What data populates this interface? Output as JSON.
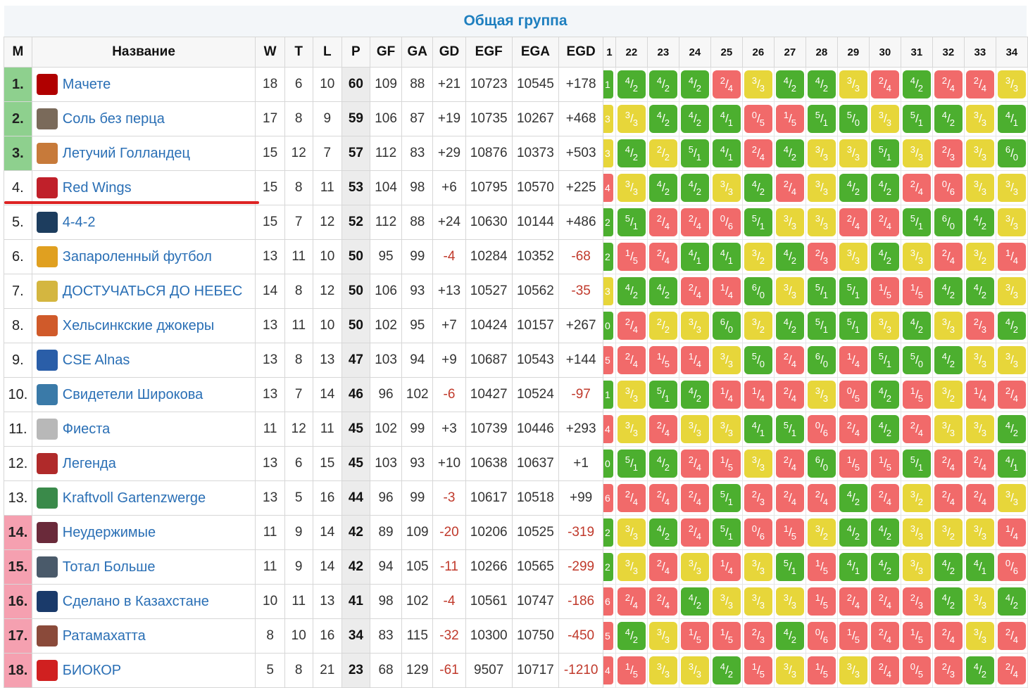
{
  "header": {
    "title": "Общая группа"
  },
  "columns": [
    "М",
    "Название",
    "W",
    "T",
    "L",
    "P",
    "GF",
    "GA",
    "GD",
    "EGF",
    "EGA",
    "EGD"
  ],
  "round_columns": [
    "1",
    "22",
    "23",
    "24",
    "25",
    "26",
    "27",
    "28",
    "29",
    "30",
    "31",
    "32",
    "33",
    "34"
  ],
  "rows": [
    {
      "pos": "1.",
      "zone": "top",
      "name": "Мачете",
      "logo_color": "#b00000",
      "w": "18",
      "t": "6",
      "l": "10",
      "p": "60",
      "gf": "109",
      "ga": "88",
      "gd": "+21",
      "egf": "10723",
      "ega": "10545",
      "egd": "+178",
      "first": "1",
      "res": [
        "w4/2",
        "w4/2",
        "w4/2",
        "l2/4",
        "d3/3",
        "w4/2",
        "w4/2",
        "d3/3",
        "l2/4",
        "w4/2",
        "l2/4",
        "l2/4",
        "d3/3"
      ]
    },
    {
      "pos": "2.",
      "zone": "top",
      "name": "Соль без перца",
      "logo_color": "#7a6a5a",
      "w": "17",
      "t": "8",
      "l": "9",
      "p": "59",
      "gf": "106",
      "ga": "87",
      "gd": "+19",
      "egf": "10735",
      "ega": "10267",
      "egd": "+468",
      "first": "3",
      "res": [
        "d3/3",
        "w4/2",
        "w4/2",
        "w4/1",
        "l0/5",
        "l1/5",
        "w5/1",
        "w5/0",
        "d3/3",
        "w5/1",
        "w4/2",
        "d3/3",
        "w4/1"
      ]
    },
    {
      "pos": "3.",
      "zone": "top",
      "name": "Летучий Голландец",
      "logo_color": "#c77a3a",
      "w": "15",
      "t": "12",
      "l": "7",
      "p": "57",
      "gf": "112",
      "ga": "83",
      "gd": "+29",
      "egf": "10876",
      "ega": "10373",
      "egd": "+503",
      "first": "3",
      "res": [
        "w4/2",
        "d2/2",
        "w5/1",
        "w4/1",
        "l2/4",
        "w4/2",
        "d3/3",
        "d3/3",
        "w5/1",
        "d3/3",
        "l2/3",
        "d3/3",
        "w6/0"
      ]
    },
    {
      "pos": "4.",
      "zone": "",
      "name": "Red Wings",
      "logo_color": "#c0202a",
      "w": "15",
      "t": "8",
      "l": "11",
      "p": "53",
      "gf": "104",
      "ga": "98",
      "gd": "+6",
      "egf": "10795",
      "ega": "10570",
      "egd": "+225",
      "first": "4",
      "res": [
        "d3/3",
        "w4/2",
        "w4/2",
        "d3/3",
        "w4/2",
        "l2/4",
        "d3/3",
        "w4/2",
        "w4/2",
        "l2/4",
        "l0/6",
        "d3/3",
        "d3/3"
      ]
    },
    {
      "pos": "5.",
      "zone": "",
      "name": "4-4-2",
      "logo_color": "#1d3d5e",
      "w": "15",
      "t": "7",
      "l": "12",
      "p": "52",
      "gf": "112",
      "ga": "88",
      "gd": "+24",
      "egf": "10630",
      "ega": "10144",
      "egd": "+486",
      "first": "2",
      "res": [
        "w5/1",
        "l2/4",
        "l2/4",
        "l0/6",
        "w5/1",
        "d3/3",
        "d3/3",
        "l2/4",
        "l2/4",
        "w5/1",
        "w6/0",
        "w4/2",
        "d3/3"
      ]
    },
    {
      "pos": "6.",
      "zone": "",
      "name": "Запароленный футбол",
      "logo_color": "#e0a020",
      "w": "13",
      "t": "11",
      "l": "10",
      "p": "50",
      "gf": "95",
      "ga": "99",
      "gd": "-4",
      "egf": "10284",
      "ega": "10352",
      "egd": "-68",
      "first": "2",
      "res": [
        "l1/5",
        "l2/4",
        "w4/1",
        "w4/1",
        "d3/2",
        "w4/2",
        "l2/3",
        "d3/3",
        "w4/2",
        "d3/3",
        "l2/4",
        "d3/2",
        "l1/4"
      ]
    },
    {
      "pos": "7.",
      "zone": "",
      "name": "ДОСТУЧАТЬСЯ ДО НЕБЕС",
      "logo_color": "#d4b640",
      "w": "14",
      "t": "8",
      "l": "12",
      "p": "50",
      "gf": "106",
      "ga": "93",
      "gd": "+13",
      "egf": "10527",
      "ega": "10562",
      "egd": "-35",
      "first": "3",
      "res": [
        "w4/2",
        "w4/2",
        "l2/4",
        "l1/4",
        "w6/0",
        "d3/3",
        "w5/1",
        "w5/1",
        "l1/5",
        "l1/5",
        "w4/2",
        "w4/2",
        "d3/3"
      ]
    },
    {
      "pos": "8.",
      "zone": "",
      "name": "Хельсинкские джокеры",
      "logo_color": "#d05a2a",
      "w": "13",
      "t": "11",
      "l": "10",
      "p": "50",
      "gf": "102",
      "ga": "95",
      "gd": "+7",
      "egf": "10424",
      "ega": "10157",
      "egd": "+267",
      "first": "0",
      "res": [
        "l2/4",
        "d2/2",
        "d3/3",
        "w6/0",
        "d3/2",
        "w4/2",
        "w5/1",
        "w5/1",
        "d3/3",
        "w4/2",
        "d3/3",
        "l2/3",
        "w4/2"
      ]
    },
    {
      "pos": "9.",
      "zone": "",
      "name": "CSE Alnas",
      "logo_color": "#2a5ea8",
      "w": "13",
      "t": "8",
      "l": "13",
      "p": "47",
      "gf": "103",
      "ga": "94",
      "gd": "+9",
      "egf": "10687",
      "ega": "10543",
      "egd": "+144",
      "first": "5",
      "res": [
        "l2/4",
        "l1/5",
        "l1/4",
        "d3/3",
        "w5/0",
        "l2/4",
        "w6/0",
        "l1/4",
        "w5/1",
        "w5/0",
        "w4/2",
        "d3/3",
        "d3/3"
      ]
    },
    {
      "pos": "10.",
      "zone": "",
      "name": "Свидетели Широкова",
      "logo_color": "#3a7aa8",
      "w": "13",
      "t": "7",
      "l": "14",
      "p": "46",
      "gf": "96",
      "ga": "102",
      "gd": "-6",
      "egf": "10427",
      "ega": "10524",
      "egd": "-97",
      "first": "1",
      "res": [
        "d3/3",
        "w5/1",
        "w4/2",
        "l1/4",
        "l1/4",
        "l2/4",
        "d3/3",
        "l0/5",
        "w4/2",
        "l1/5",
        "d3/2",
        "l1/4",
        "l2/4"
      ]
    },
    {
      "pos": "11.",
      "zone": "",
      "name": "Фиеста",
      "logo_color": "#b8b8b8",
      "w": "11",
      "t": "12",
      "l": "11",
      "p": "45",
      "gf": "102",
      "ga": "99",
      "gd": "+3",
      "egf": "10739",
      "ega": "10446",
      "egd": "+293",
      "first": "4",
      "res": [
        "d3/3",
        "l2/4",
        "d3/3",
        "d3/3",
        "w4/1",
        "w5/1",
        "l0/6",
        "l2/4",
        "w4/2",
        "l2/4",
        "d3/3",
        "d3/3",
        "w4/2"
      ]
    },
    {
      "pos": "12.",
      "zone": "",
      "name": "Легенда",
      "logo_color": "#b02a2a",
      "w": "13",
      "t": "6",
      "l": "15",
      "p": "45",
      "gf": "103",
      "ga": "93",
      "gd": "+10",
      "egf": "10638",
      "ega": "10637",
      "egd": "+1",
      "first": "0",
      "res": [
        "w5/1",
        "w4/2",
        "l2/4",
        "l1/5",
        "d3/3",
        "l2/4",
        "w6/0",
        "l1/5",
        "l1/5",
        "w5/1",
        "l2/4",
        "l2/4",
        "w4/1"
      ]
    },
    {
      "pos": "13.",
      "zone": "",
      "name": "Kraftvoll Gartenzwerge",
      "logo_color": "#3a8a4a",
      "w": "13",
      "t": "5",
      "l": "16",
      "p": "44",
      "gf": "96",
      "ga": "99",
      "gd": "-3",
      "egf": "10617",
      "ega": "10518",
      "egd": "+99",
      "first": "6",
      "res": [
        "l2/4",
        "l2/4",
        "l2/4",
        "w5/1",
        "l2/3",
        "l2/4",
        "l2/4",
        "w4/2",
        "l2/4",
        "d3/2",
        "l2/4",
        "l2/4",
        "d3/3"
      ]
    },
    {
      "pos": "14.",
      "zone": "bottom",
      "name": "Неудержимые",
      "logo_color": "#6a2a3a",
      "w": "11",
      "t": "9",
      "l": "14",
      "p": "42",
      "gf": "89",
      "ga": "109",
      "gd": "-20",
      "egf": "10206",
      "ega": "10525",
      "egd": "-319",
      "first": "2",
      "res": [
        "d3/3",
        "w4/2",
        "l2/4",
        "w5/1",
        "l0/6",
        "l1/5",
        "d3/2",
        "w4/2",
        "w4/2",
        "d3/3",
        "d3/2",
        "d3/3",
        "l1/4"
      ]
    },
    {
      "pos": "15.",
      "zone": "bottom",
      "name": "Тотал Больше",
      "logo_color": "#4a5a6a",
      "w": "11",
      "t": "9",
      "l": "14",
      "p": "42",
      "gf": "94",
      "ga": "105",
      "gd": "-11",
      "egf": "10266",
      "ega": "10565",
      "egd": "-299",
      "first": "2",
      "res": [
        "d3/3",
        "l2/4",
        "d3/3",
        "l1/4",
        "d3/3",
        "w5/1",
        "l1/5",
        "w4/1",
        "w4/2",
        "d3/3",
        "w4/2",
        "w4/1",
        "l0/6"
      ]
    },
    {
      "pos": "16.",
      "zone": "bottom",
      "name": "Сделано в Казахстане",
      "logo_color": "#1a3a6a",
      "w": "10",
      "t": "11",
      "l": "13",
      "p": "41",
      "gf": "98",
      "ga": "102",
      "gd": "-4",
      "egf": "10561",
      "ega": "10747",
      "egd": "-186",
      "first": "6",
      "res": [
        "l2/4",
        "l2/4",
        "w4/2",
        "d3/3",
        "d3/3",
        "d3/3",
        "l1/5",
        "l2/4",
        "l2/4",
        "l2/3",
        "w4/2",
        "d3/3",
        "w4/2"
      ]
    },
    {
      "pos": "17.",
      "zone": "bottom",
      "name": "Ратамахатта",
      "logo_color": "#8a4a3a",
      "w": "8",
      "t": "10",
      "l": "16",
      "p": "34",
      "gf": "83",
      "ga": "115",
      "gd": "-32",
      "egf": "10300",
      "ega": "10750",
      "egd": "-450",
      "first": "5",
      "res": [
        "w4/2",
        "d3/3",
        "l1/5",
        "l1/5",
        "l2/3",
        "w4/2",
        "l0/6",
        "l1/5",
        "l2/4",
        "l1/5",
        "l2/4",
        "d3/3",
        "l2/4"
      ]
    },
    {
      "pos": "18.",
      "zone": "bottom",
      "name": "БИОКОР",
      "logo_color": "#d02020",
      "w": "5",
      "t": "8",
      "l": "21",
      "p": "23",
      "gf": "68",
      "ga": "129",
      "gd": "-61",
      "egf": "9507",
      "ega": "10717",
      "egd": "-1210",
      "first": "4",
      "res": [
        "l1/5",
        "d3/3",
        "d3/3",
        "w4/2",
        "l1/5",
        "d3/3",
        "l1/5",
        "d3/3",
        "l2/4",
        "l0/5",
        "l2/3",
        "w4/2",
        "l2/4"
      ]
    }
  ]
}
